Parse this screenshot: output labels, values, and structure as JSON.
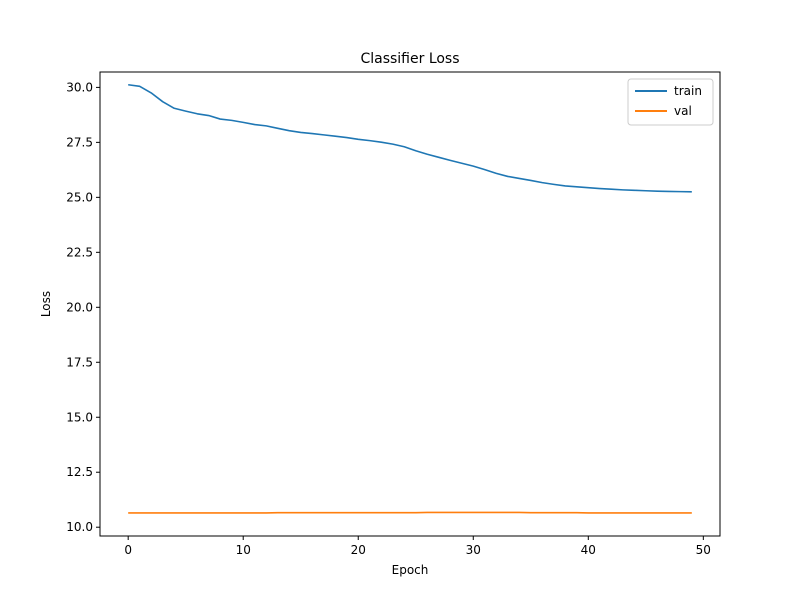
{
  "chart_data": {
    "type": "line",
    "title": "Classifier Loss",
    "xlabel": "Epoch",
    "ylabel": "Loss",
    "xlim": [
      -2.45,
      51.45
    ],
    "ylim": [
      9.6,
      30.7
    ],
    "xticks": [
      0,
      10,
      20,
      30,
      40,
      50
    ],
    "xtick_labels": [
      "0",
      "10",
      "20",
      "30",
      "40",
      "50"
    ],
    "yticks": [
      10.0,
      12.5,
      15.0,
      17.5,
      20.0,
      22.5,
      25.0,
      27.5,
      30.0
    ],
    "ytick_labels": [
      "10.0",
      "12.5",
      "15.0",
      "17.5",
      "20.0",
      "22.5",
      "25.0",
      "27.5",
      "30.0"
    ],
    "grid": false,
    "legend_position": "top-right",
    "x": [
      0,
      1,
      2,
      3,
      4,
      5,
      6,
      7,
      8,
      9,
      10,
      11,
      12,
      13,
      14,
      15,
      16,
      17,
      18,
      19,
      20,
      21,
      22,
      23,
      24,
      25,
      26,
      27,
      28,
      29,
      30,
      31,
      32,
      33,
      34,
      35,
      36,
      37,
      38,
      39,
      40,
      41,
      42,
      43,
      44,
      45,
      46,
      47,
      48,
      49
    ],
    "series": [
      {
        "name": "train",
        "color": "#1f77b4",
        "values": [
          30.12,
          30.05,
          29.75,
          29.35,
          29.05,
          28.92,
          28.8,
          28.72,
          28.56,
          28.5,
          28.41,
          28.31,
          28.25,
          28.14,
          28.03,
          27.95,
          27.9,
          27.84,
          27.78,
          27.72,
          27.64,
          27.58,
          27.51,
          27.42,
          27.3,
          27.12,
          26.96,
          26.82,
          26.68,
          26.55,
          26.42,
          26.26,
          26.09,
          25.95,
          25.86,
          25.77,
          25.67,
          25.59,
          25.52,
          25.48,
          25.44,
          25.4,
          25.37,
          25.34,
          25.32,
          25.3,
          25.28,
          25.27,
          25.26,
          25.25
        ]
      },
      {
        "name": "val",
        "color": "#ff7f0e",
        "values": [
          10.65,
          10.65,
          10.65,
          10.65,
          10.65,
          10.65,
          10.65,
          10.65,
          10.65,
          10.65,
          10.65,
          10.65,
          10.65,
          10.66,
          10.66,
          10.66,
          10.66,
          10.66,
          10.66,
          10.66,
          10.66,
          10.66,
          10.66,
          10.66,
          10.66,
          10.66,
          10.67,
          10.67,
          10.67,
          10.67,
          10.67,
          10.67,
          10.67,
          10.67,
          10.67,
          10.66,
          10.66,
          10.66,
          10.66,
          10.66,
          10.65,
          10.65,
          10.65,
          10.65,
          10.65,
          10.65,
          10.65,
          10.65,
          10.65,
          10.65
        ]
      }
    ]
  }
}
